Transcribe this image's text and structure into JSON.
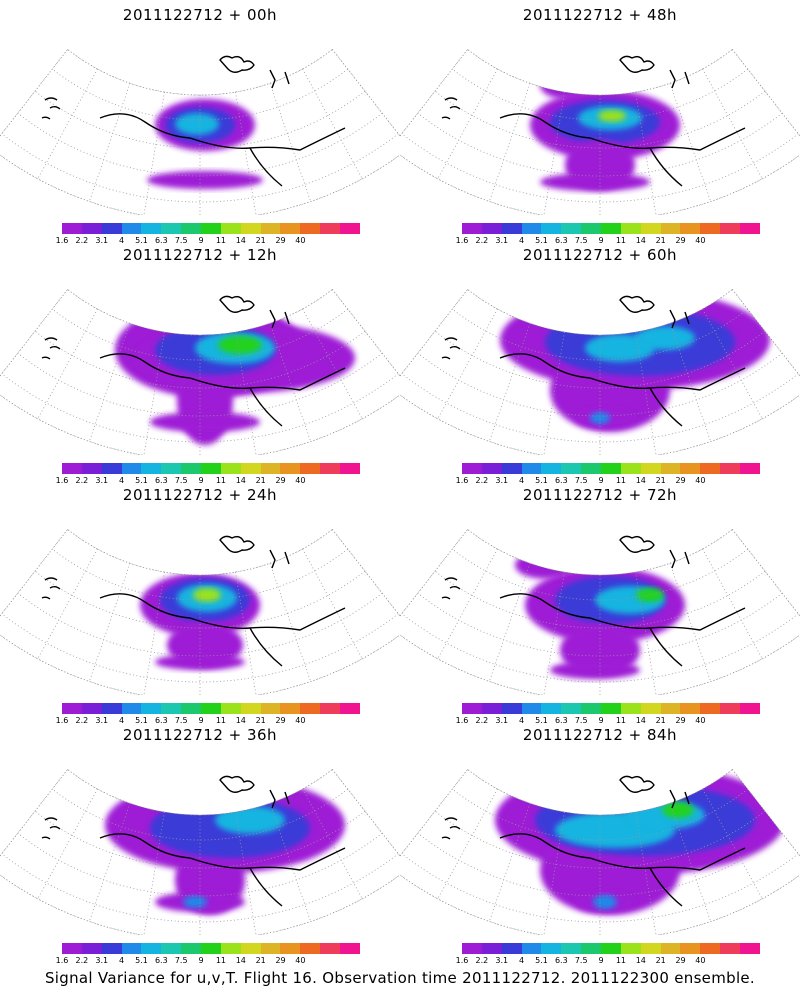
{
  "panels": [
    {
      "title": "2011122712 + 00h",
      "stage": 0
    },
    {
      "title": "2011122712 + 48h",
      "stage": 4
    },
    {
      "title": "2011122712 + 12h",
      "stage": 1
    },
    {
      "title": "2011122712 + 60h",
      "stage": 5
    },
    {
      "title": "2011122712 + 24h",
      "stage": 2
    },
    {
      "title": "2011122712 + 72h",
      "stage": 6
    },
    {
      "title": "2011122712 + 36h",
      "stage": 3
    },
    {
      "title": "2011122712 + 84h",
      "stage": 7
    }
  ],
  "colorbar": {
    "colors": [
      "#9e1bd6",
      "#7a1fd8",
      "#3a3ad8",
      "#1f8ae8",
      "#14b4e0",
      "#1cc7b0",
      "#1cc86c",
      "#22d21a",
      "#9ae21a",
      "#d2d61e",
      "#dcb426",
      "#e89420",
      "#ee6a22",
      "#ee3c5a",
      "#f01490"
    ],
    "labels": [
      "1.6",
      "2.2",
      "3.1",
      "4",
      "5.1",
      "6.3",
      "7.5",
      "9",
      "11",
      "14",
      "21",
      "29",
      "40"
    ]
  },
  "caption": "Signal Variance for u,v,T. Flight 16. Observation time 2011122712. 2011122300 ensemble."
}
